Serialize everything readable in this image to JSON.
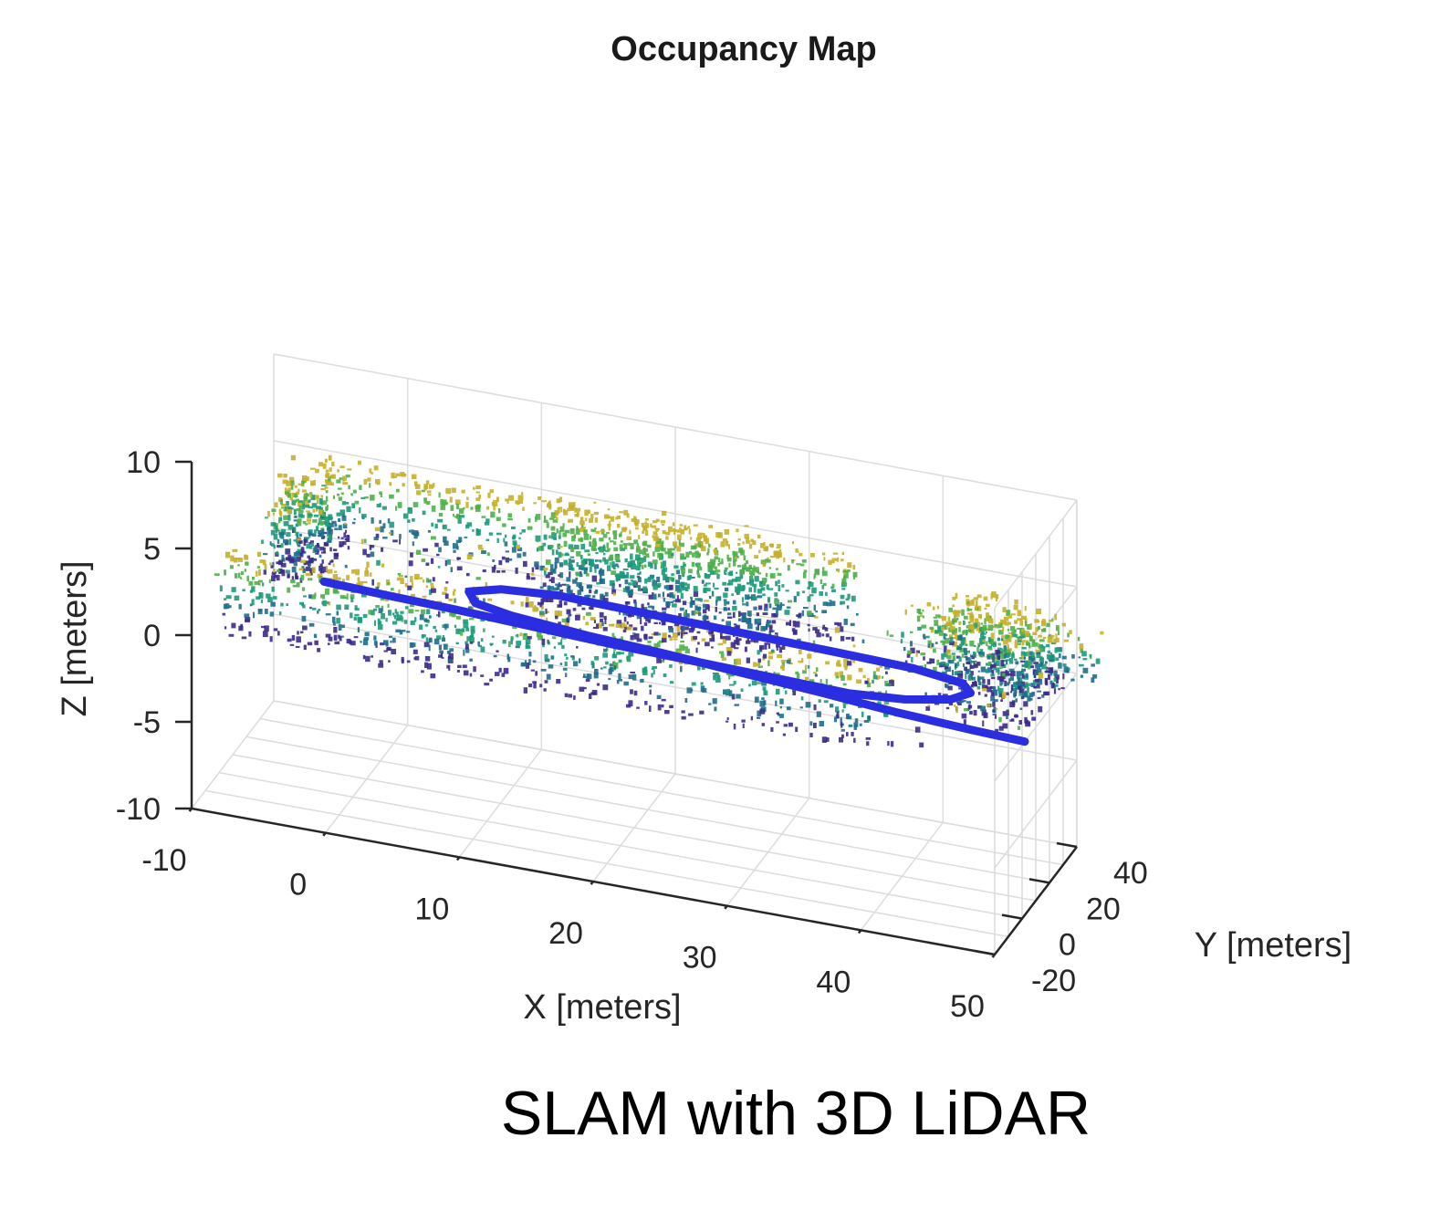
{
  "chart_data": {
    "type": "scatter",
    "title": "Occupancy Map",
    "xlabel": "X [meters]",
    "ylabel": "Y [meters]",
    "zlabel": "Z [meters]",
    "xlim": [
      -10,
      50
    ],
    "ylim": [
      -20,
      40
    ],
    "zlim": [
      -10,
      10
    ],
    "x_ticks": [
      "-10",
      "0",
      "10",
      "20",
      "30",
      "40",
      "50"
    ],
    "y_ticks": [
      "-20",
      "0",
      "20",
      "40"
    ],
    "z_ticks": [
      "10",
      "5",
      "0",
      "-5",
      "-10"
    ],
    "grid": true,
    "view": "3d",
    "point_cloud_colormap": [
      "#3b2a8c",
      "#1f6e8c",
      "#1d9a7a",
      "#4fb04a",
      "#c7b02a"
    ],
    "trajectory": {
      "color": "#2a2ee0",
      "points": [
        [
          -4,
          18,
          0
        ],
        [
          0,
          17,
          0
        ],
        [
          6,
          16,
          0
        ],
        [
          12,
          14.5,
          0
        ],
        [
          18,
          13,
          0
        ],
        [
          24,
          12,
          0
        ],
        [
          30,
          11,
          0
        ],
        [
          36,
          10,
          0
        ],
        [
          40,
          12,
          0
        ],
        [
          43,
          16,
          0
        ],
        [
          44,
          21,
          0
        ],
        [
          43,
          25,
          0
        ],
        [
          39,
          28,
          0
        ],
        [
          33,
          29,
          0
        ],
        [
          26,
          30,
          0
        ],
        [
          19,
          31,
          0
        ],
        [
          12,
          32,
          0
        ],
        [
          8,
          30,
          0
        ],
        [
          6,
          26,
          0
        ],
        [
          7,
          21,
          0
        ],
        [
          10,
          18,
          0
        ],
        [
          16,
          15,
          0
        ],
        [
          22,
          13,
          0
        ],
        [
          28,
          10.5,
          0
        ],
        [
          34,
          8,
          0
        ],
        [
          40,
          5,
          0
        ],
        [
          46,
          3,
          0
        ],
        [
          50,
          2,
          0
        ]
      ]
    }
  },
  "caption": "SLAM with 3D LiDAR"
}
